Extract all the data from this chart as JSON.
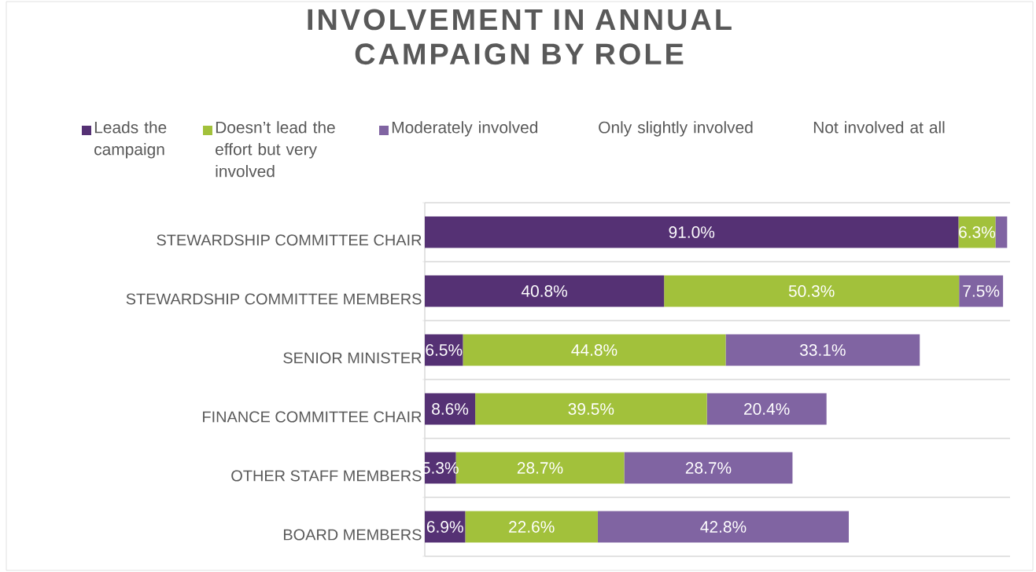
{
  "chart_data": {
    "type": "bar",
    "orientation": "horizontal",
    "stacked": true,
    "title": "INVOLVEMENT IN ANNUAL CAMPAIGN BY ROLE",
    "categories": [
      "STEWARDSHIP COMMITTEE CHAIR",
      "STEWARDSHIP COMMITTEE MEMBERS",
      "SENIOR MINISTER",
      "FINANCE COMMITTEE CHAIR",
      "OTHER STAFF MEMBERS",
      "BOARD MEMBERS"
    ],
    "legend": "top",
    "grid": "y",
    "series": [
      {
        "name": "Leads the campaign",
        "color": "#553174",
        "values": [
          91.0,
          40.8,
          6.5,
          8.6,
          5.3,
          6.9
        ],
        "value_labels": [
          "91.0%",
          "40.8%",
          "6.5%",
          "8.6%",
          "5.3%",
          "6.9%"
        ]
      },
      {
        "name": "Doesn’t lead the effort but very involved",
        "color": "#a2c13b",
        "values": [
          6.3,
          50.3,
          44.8,
          39.5,
          28.7,
          22.6
        ],
        "value_labels": [
          "6.3%",
          "50.3%",
          "44.8%",
          "39.5%",
          "28.7%",
          "22.6%"
        ]
      },
      {
        "name": "Moderately involved",
        "color": "#8064a2",
        "values": [
          2.0,
          7.5,
          33.1,
          20.4,
          28.7,
          42.8
        ],
        "value_labels": [
          null,
          "7.5%",
          "33.1%",
          "20.4%",
          "28.7%",
          "42.8%"
        ]
      },
      {
        "name": "Only slightly involved",
        "values": [
          null,
          null,
          null,
          null,
          null,
          null
        ]
      },
      {
        "name": "Not involved at all",
        "values": [
          null,
          null,
          null,
          null,
          null,
          null
        ]
      }
    ]
  }
}
